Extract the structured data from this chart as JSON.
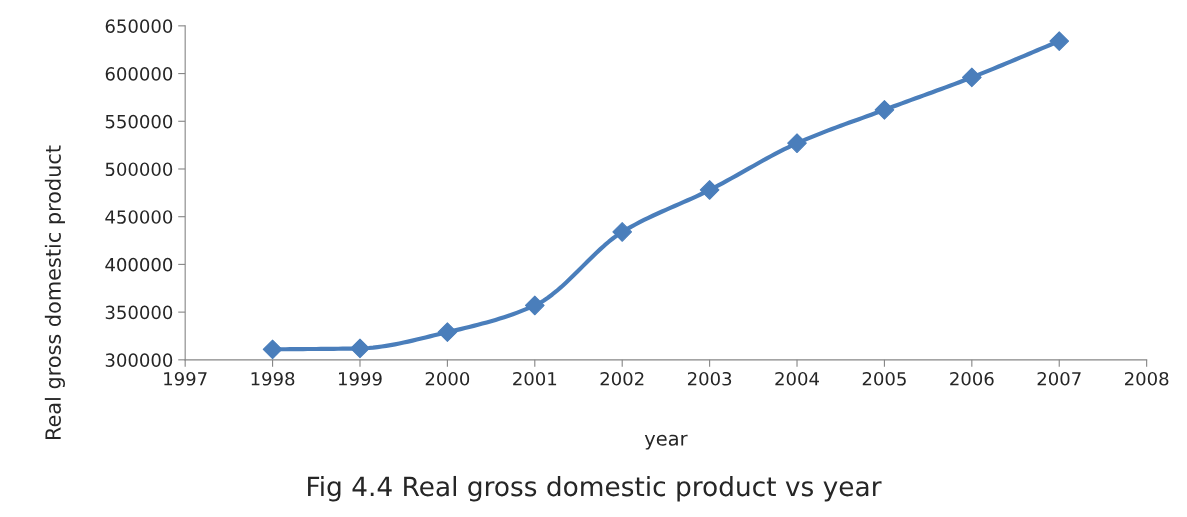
{
  "chart_data": {
    "type": "line",
    "title": "Fig 4.4 Real gross domestic product vs year",
    "xlabel": "year",
    "ylabel": "Real gross domestic product",
    "x": [
      1998,
      1999,
      2000,
      2001,
      2002,
      2003,
      2004,
      2005,
      2006,
      2007
    ],
    "series": [
      {
        "color": "#4a7ebb",
        "values": [
          311000,
          312000,
          329000,
          357000,
          434000,
          478000,
          527000,
          562000,
          596000,
          634000
        ]
      }
    ],
    "xlim": [
      1997,
      2008
    ],
    "xticks": [
      1997,
      1998,
      1999,
      2000,
      2001,
      2002,
      2003,
      2004,
      2005,
      2006,
      2007,
      2008
    ],
    "ylim": [
      300000,
      650000
    ],
    "yticks": [
      300000,
      350000,
      400000,
      450000,
      500000,
      550000,
      600000,
      650000
    ],
    "grid": false,
    "legend": false,
    "marker": "diamond",
    "line_style": "solid"
  }
}
